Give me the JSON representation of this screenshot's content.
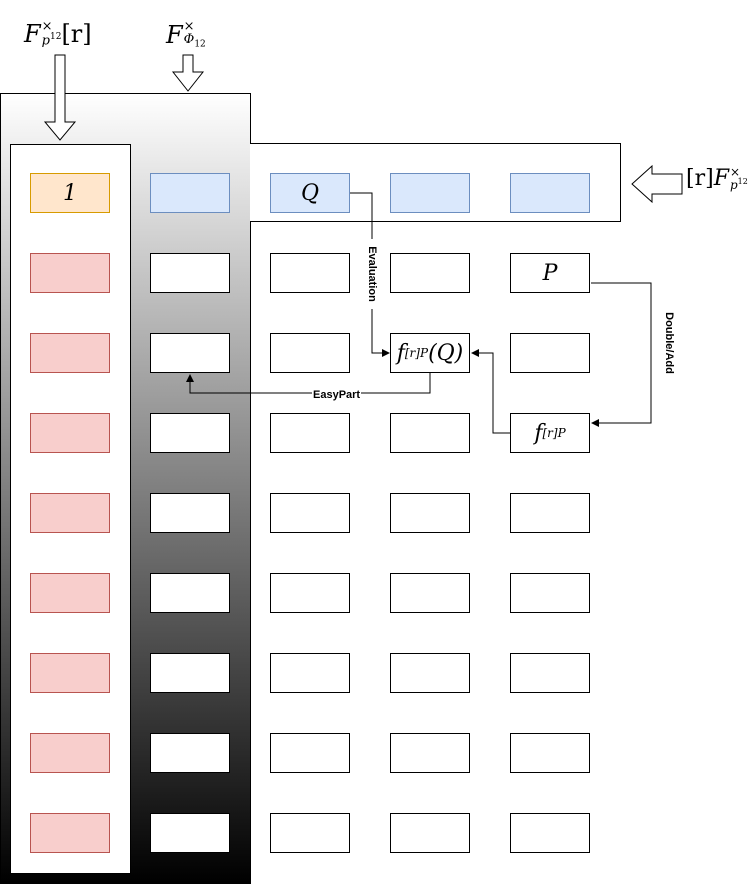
{
  "labels": {
    "top_left": "F",
    "top_left_sup": "×",
    "top_left_sub": "p",
    "top_left_subsup": "12",
    "top_left_suffix": "[r]",
    "top_mid": "F",
    "top_mid_sup": "×",
    "top_mid_sub": "Φ",
    "top_mid_subsub": "12",
    "right_prefix": "[r]",
    "right_main": "F",
    "right_sup": "×",
    "right_sub": "p",
    "right_subsup": "12"
  },
  "cells": {
    "one": "1",
    "q": "Q",
    "p": "P",
    "fpq_f": "f",
    "fpq_sub": "[r]P",
    "fpq_arg": "(Q)",
    "fp_f": "f",
    "fp_sub": "[r]P"
  },
  "edges": {
    "evaluation": "Evaluation",
    "double_add": "Double/Add",
    "easy_part": "EasyPart"
  }
}
